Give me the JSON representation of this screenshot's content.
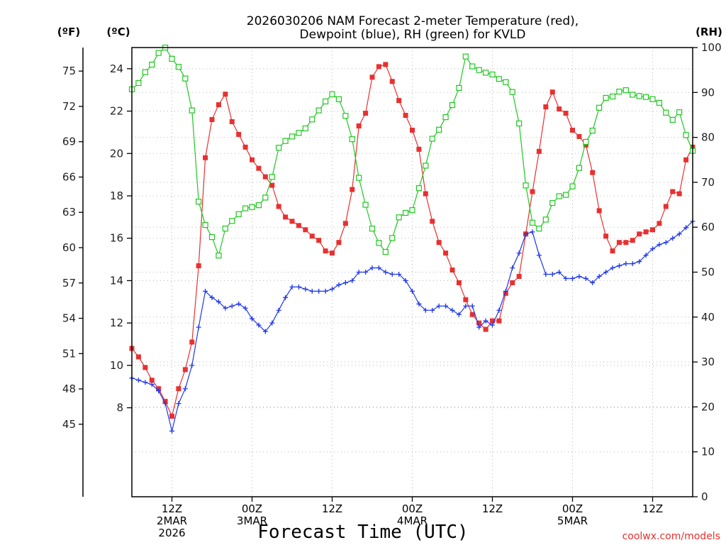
{
  "chart_data": {
    "type": "line",
    "title": [
      "2026030206 NAM Forecast 2-meter Temperature (red),",
      "Dewpoint (blue), RH (green) for KVLD"
    ],
    "xlabel": "Forecast Time (UTC)",
    "credit": "coolwx.com/models",
    "left_units": [
      "(ºF)",
      "(ºC)"
    ],
    "right_units": "(RH)",
    "x_ticks": [
      {
        "hour": 6,
        "lines": [
          "12Z",
          "2MAR",
          "2026"
        ]
      },
      {
        "hour": 18,
        "lines": [
          "00Z",
          "3MAR"
        ]
      },
      {
        "hour": 30,
        "lines": [
          "12Z"
        ]
      },
      {
        "hour": 42,
        "lines": [
          "00Z",
          "4MAR"
        ]
      },
      {
        "hour": 54,
        "lines": [
          "12Z"
        ]
      },
      {
        "hour": 66,
        "lines": [
          "00Z",
          "5MAR"
        ]
      },
      {
        "hour": 78,
        "lines": [
          "12Z"
        ]
      }
    ],
    "xlim": [
      0,
      84
    ],
    "y_celsius": {
      "ylim": [
        3.8,
        25.0
      ],
      "ticks": [
        8,
        10,
        12,
        14,
        16,
        18,
        20,
        22,
        24
      ]
    },
    "y_fahrenheit": {
      "ticks": [
        45,
        48,
        51,
        54,
        57,
        60,
        63,
        66,
        69,
        72,
        75
      ]
    },
    "y_rh": {
      "ylim": [
        0,
        100
      ],
      "ticks": [
        0,
        10,
        20,
        30,
        40,
        50,
        60,
        70,
        80,
        90,
        100
      ]
    },
    "grid": true,
    "series": [
      {
        "name": "Temperature",
        "axis": "celsius",
        "color": "#e83030",
        "marker": "filled-square",
        "x": [
          0,
          1,
          2,
          3,
          4,
          5,
          6,
          7,
          8,
          9,
          10,
          11,
          12,
          13,
          14,
          15,
          16,
          17,
          18,
          19,
          20,
          21,
          22,
          23,
          24,
          25,
          26,
          27,
          28,
          29,
          30,
          31,
          32,
          33,
          34,
          35,
          36,
          37,
          38,
          39,
          40,
          41,
          42,
          43,
          44,
          45,
          46,
          47,
          48,
          49,
          50,
          51,
          52,
          53,
          54,
          55,
          56,
          57,
          58,
          59,
          60,
          61,
          62,
          63,
          64,
          65,
          66,
          67,
          68,
          69,
          70,
          71,
          72,
          73,
          74,
          75,
          76,
          77,
          78,
          79,
          80,
          81,
          82,
          83,
          84
        ],
        "values": [
          10.8,
          10.4,
          9.9,
          9.3,
          8.9,
          8.3,
          7.6,
          8.9,
          9.8,
          11.1,
          14.7,
          19.8,
          21.6,
          22.3,
          22.8,
          21.5,
          20.9,
          20.3,
          19.7,
          19.3,
          18.9,
          18.5,
          17.5,
          17.0,
          16.8,
          16.6,
          16.4,
          16.1,
          15.9,
          15.4,
          15.3,
          15.8,
          16.7,
          18.3,
          21.3,
          21.9,
          23.6,
          24.1,
          24.2,
          23.4,
          22.5,
          21.8,
          21.1,
          20.2,
          18.1,
          16.8,
          15.8,
          15.3,
          14.5,
          13.9,
          13.1,
          12.4,
          12.0,
          11.7,
          12.1,
          12.1,
          13.4,
          13.9,
          14.2,
          16.2,
          18.2,
          20.1,
          22.2,
          22.9,
          22.1,
          21.9,
          21.1,
          20.8,
          20.4,
          19.1,
          17.3,
          16.1,
          15.4,
          15.8,
          15.8,
          15.9,
          16.2,
          16.3,
          16.4,
          16.7,
          17.5,
          18.2,
          18.1,
          19.7,
          20.3
        ]
      },
      {
        "name": "Dewpoint",
        "axis": "celsius",
        "color": "#2038e8",
        "marker": "plus",
        "x": [
          0,
          1,
          2,
          3,
          4,
          5,
          6,
          7,
          8,
          9,
          10,
          11,
          12,
          13,
          14,
          15,
          16,
          17,
          18,
          19,
          20,
          21,
          22,
          23,
          24,
          25,
          26,
          27,
          28,
          29,
          30,
          31,
          32,
          33,
          34,
          35,
          36,
          37,
          38,
          39,
          40,
          41,
          42,
          43,
          44,
          45,
          46,
          47,
          48,
          49,
          50,
          51,
          52,
          53,
          54,
          55,
          56,
          57,
          58,
          59,
          60,
          61,
          62,
          63,
          64,
          65,
          66,
          67,
          68,
          69,
          70,
          71,
          72,
          73,
          74,
          75,
          76,
          77,
          78,
          79,
          80,
          81,
          82,
          83,
          84
        ],
        "values": [
          9.4,
          9.3,
          9.2,
          9.1,
          8.8,
          8.2,
          6.9,
          8.2,
          8.9,
          10.0,
          11.8,
          13.5,
          13.2,
          13.0,
          12.7,
          12.8,
          12.9,
          12.7,
          12.2,
          11.9,
          11.6,
          12.0,
          12.6,
          13.2,
          13.7,
          13.7,
          13.6,
          13.5,
          13.5,
          13.5,
          13.6,
          13.8,
          13.9,
          14.0,
          14.4,
          14.4,
          14.6,
          14.6,
          14.4,
          14.3,
          14.3,
          14.0,
          13.5,
          12.9,
          12.6,
          12.6,
          12.8,
          12.8,
          12.6,
          12.4,
          12.8,
          12.8,
          11.8,
          12.1,
          11.9,
          12.6,
          13.5,
          14.6,
          15.3,
          16.2,
          16.3,
          15.2,
          14.3,
          14.3,
          14.4,
          14.1,
          14.1,
          14.2,
          14.1,
          13.9,
          14.2,
          14.4,
          14.6,
          14.7,
          14.8,
          14.8,
          14.9,
          15.2,
          15.5,
          15.7,
          15.8,
          16.0,
          16.2,
          16.5,
          16.8
        ]
      },
      {
        "name": "RH",
        "axis": "rh",
        "color": "#20c820",
        "marker": "open-square",
        "x": [
          0,
          1,
          2,
          3,
          4,
          5,
          6,
          7,
          8,
          9,
          10,
          11,
          12,
          13,
          14,
          15,
          16,
          17,
          18,
          19,
          20,
          21,
          22,
          23,
          24,
          25,
          26,
          27,
          28,
          29,
          30,
          31,
          32,
          33,
          34,
          35,
          36,
          37,
          38,
          39,
          40,
          41,
          42,
          43,
          44,
          45,
          46,
          47,
          48,
          49,
          50,
          51,
          52,
          53,
          54,
          55,
          56,
          57,
          58,
          59,
          60,
          61,
          62,
          63,
          64,
          65,
          66,
          67,
          68,
          69,
          70,
          71,
          72,
          73,
          74,
          75,
          76,
          77,
          78,
          79,
          80,
          81,
          82,
          83,
          84
        ],
        "values": [
          90.7,
          92.1,
          94.5,
          96.2,
          98.8,
          100,
          97.5,
          95.7,
          93.1,
          86.0,
          65.7,
          60.5,
          57.8,
          53.7,
          59.7,
          61.4,
          62.9,
          64.2,
          64.5,
          64.9,
          66.6,
          71.2,
          77.7,
          79.2,
          80.2,
          81.0,
          82.0,
          84.0,
          86.0,
          88.0,
          89.6,
          88.5,
          84.8,
          79.6,
          71.0,
          65.0,
          59.7,
          56.5,
          54.5,
          57.6,
          62.2,
          63.2,
          63.8,
          68.7,
          73.7,
          79.7,
          81.7,
          84.5,
          87.2,
          91.0,
          98.0,
          95.8,
          95.0,
          94.4,
          94.0,
          93.0,
          92.3,
          90.1,
          83.1,
          69.3,
          61.0,
          59.7,
          61.7,
          65.4,
          66.9,
          67.2,
          69.1,
          73.2,
          79.0,
          81.5,
          86.6,
          88.8,
          89.1,
          90.2,
          90.5,
          89.5,
          89.2,
          89.0,
          88.5,
          87.7,
          85.5,
          83.9,
          85.6,
          80.5,
          77.0
        ]
      }
    ]
  }
}
